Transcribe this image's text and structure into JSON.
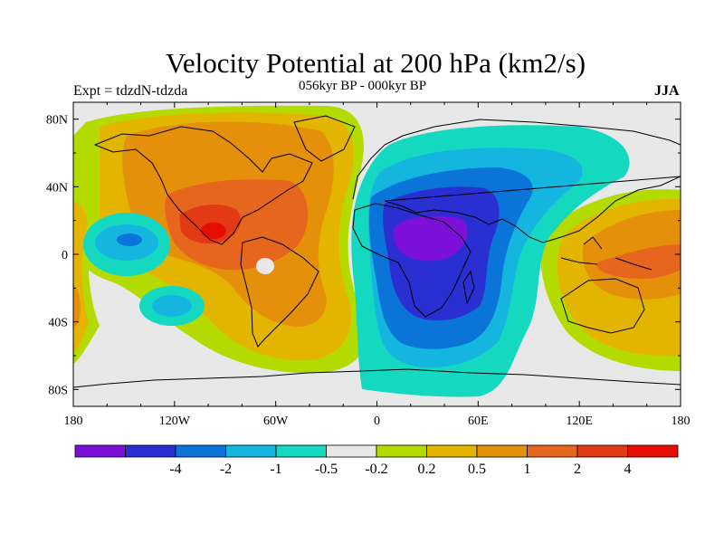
{
  "header": {
    "title": "Velocity Potential at 200 hPa (km2/s)",
    "subtitle": "056kyr BP - 000kyr BP",
    "left_label": "Expt = tdzdN-tdzda",
    "right_label": "JJA"
  },
  "map": {
    "projection": "cylindrical-equidistant",
    "lon_range": [
      -180,
      180
    ],
    "lat_range": [
      -90,
      90
    ],
    "background_color": "#e8e8e8",
    "lon_tick_labels": [
      "180",
      "120W",
      "60W",
      "0",
      "60E",
      "120E",
      "180"
    ],
    "lat_tick_labels": [
      "80N",
      "40N",
      "0",
      "40S",
      "80S"
    ]
  },
  "colorbar": {
    "colors": [
      "#7c10d8",
      "#2a2fd2",
      "#0a74d8",
      "#14b6e0",
      "#14d9c0",
      "#e8e8e8",
      "#b4db00",
      "#e3b500",
      "#e4900a",
      "#e6661e",
      "#e23a15",
      "#e60e00"
    ],
    "labels": [
      "-4",
      "-2",
      "-1",
      "-0.5",
      "-0.2",
      "0.2",
      "0.5",
      "1",
      "2",
      "4"
    ]
  }
}
